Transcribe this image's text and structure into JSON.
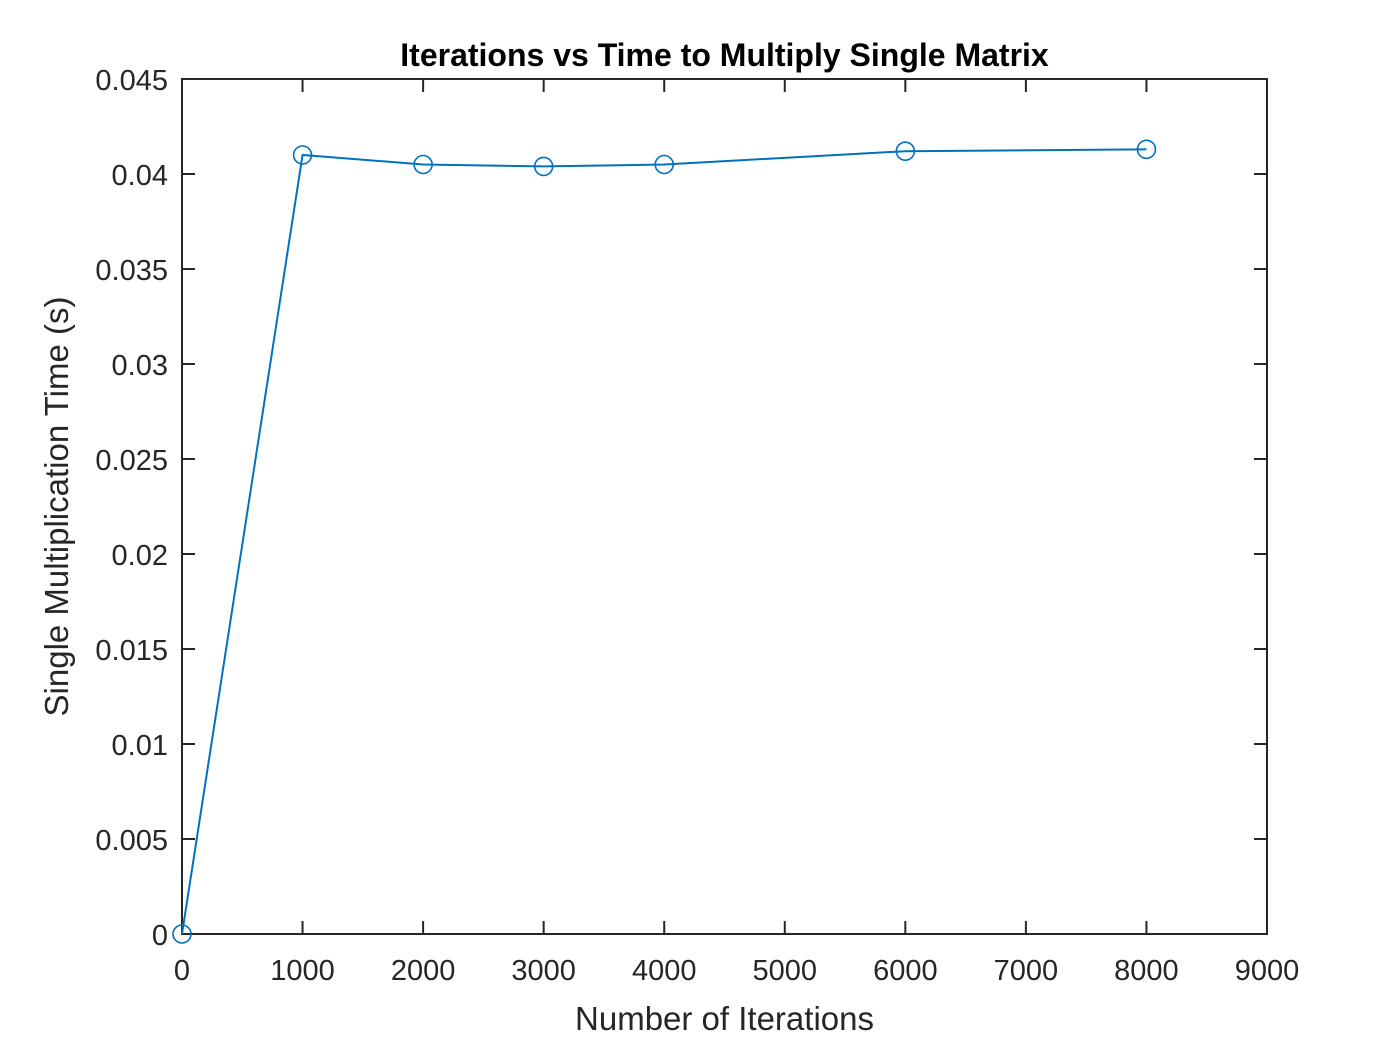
{
  "chart_data": {
    "type": "line",
    "title": "Iterations vs Time to Multiply Single Matrix",
    "xlabel": "Number of Iterations",
    "ylabel": "Single Multiplication Time (s)",
    "xlim": [
      0,
      9000
    ],
    "ylim": [
      0,
      0.045
    ],
    "x_ticks": [
      0,
      1000,
      2000,
      3000,
      4000,
      5000,
      6000,
      7000,
      8000,
      9000
    ],
    "x_tick_labels": [
      "0",
      "1000",
      "2000",
      "3000",
      "4000",
      "5000",
      "6000",
      "7000",
      "8000",
      "9000"
    ],
    "y_ticks": [
      0,
      0.005,
      0.01,
      0.015,
      0.02,
      0.025,
      0.03,
      0.035,
      0.04,
      0.045
    ],
    "y_tick_labels": [
      "0",
      "0.005",
      "0.01",
      "0.015",
      "0.02",
      "0.025",
      "0.03",
      "0.035",
      "0.04",
      "0.045"
    ],
    "grid": false,
    "legend": "none",
    "marker": "circle-open",
    "series": [
      {
        "color": "#0072BD",
        "x": [
          0,
          1000,
          2000,
          3000,
          4000,
          6000,
          8000
        ],
        "y": [
          0,
          0.041,
          0.0405,
          0.0404,
          0.0405,
          0.0412,
          0.0413
        ]
      }
    ]
  }
}
